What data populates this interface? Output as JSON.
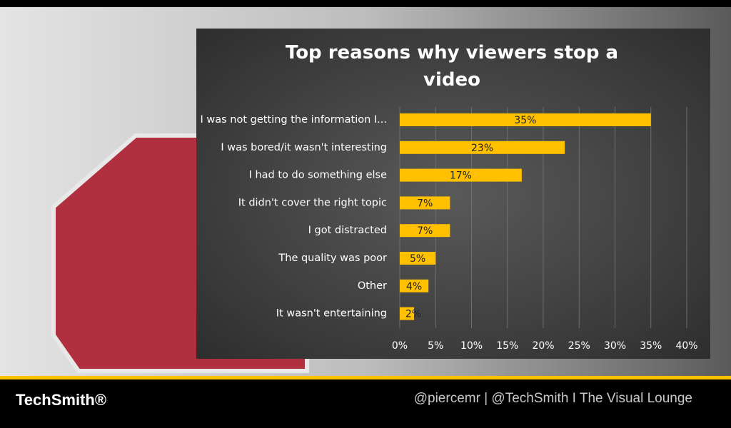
{
  "chart_data": {
    "type": "bar",
    "orientation": "horizontal",
    "title": "Top reasons why viewers stop a video",
    "categories": [
      "I was not getting the information I...",
      "I was bored/it wasn't interesting",
      "I had to do something else",
      "It didn't cover the right topic",
      "I got distracted",
      "The quality was poor",
      "Other",
      "It wasn't entertaining"
    ],
    "values": [
      35,
      23,
      17,
      7,
      7,
      5,
      4,
      2
    ],
    "value_labels": [
      "35%",
      "23%",
      "17%",
      "7%",
      "7%",
      "5%",
      "4%",
      "2%"
    ],
    "color": "#ffc000",
    "xlim": [
      0,
      40
    ],
    "xticks": [
      {
        "value": 0,
        "label": "0%"
      },
      {
        "value": 5,
        "label": "5%"
      },
      {
        "value": 10,
        "label": "10%"
      },
      {
        "value": 15,
        "label": "15%"
      },
      {
        "value": 20,
        "label": "20%"
      },
      {
        "value": 25,
        "label": "25%"
      },
      {
        "value": 30,
        "label": "30%"
      },
      {
        "value": 35,
        "label": "35%"
      },
      {
        "value": 40,
        "label": "40%"
      }
    ],
    "grid": true
  },
  "footer": {
    "logo": "TechSmith®",
    "credit": "@piercemr | @TechSmith I The Visual Lounge"
  }
}
